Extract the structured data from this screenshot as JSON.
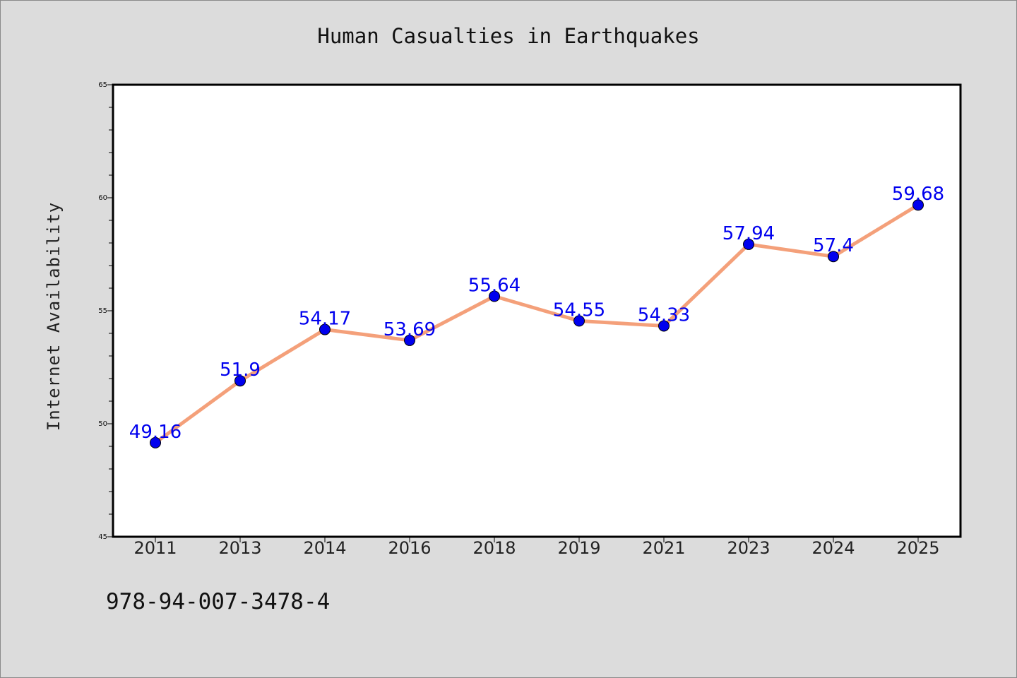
{
  "chart_data": {
    "type": "line",
    "title": "Human Casualties in Earthquakes",
    "xlabel": "",
    "ylabel": "Internet Availability",
    "categories": [
      "2011",
      "2013",
      "2014",
      "2016",
      "2018",
      "2019",
      "2021",
      "2023",
      "2024",
      "2025"
    ],
    "series": [
      {
        "values": [
          49.16,
          51.9,
          54.17,
          53.69,
          55.64,
          54.55,
          54.33,
          57.94,
          57.4,
          59.68
        ],
        "labels": [
          "49.16",
          "51.9",
          "54.17",
          "53.69",
          "55.64",
          "54.55",
          "54.33",
          "57.94",
          "57.4",
          "59.68"
        ]
      }
    ],
    "ylim": [
      45,
      65
    ],
    "yticks": [
      "45",
      "50",
      "55",
      "60",
      "65"
    ],
    "grid": false,
    "line_color": "#f4a07a",
    "marker_color": "#0000ee",
    "label_color": "#0000ee"
  },
  "footer": {
    "text": "978-94-007-3478-4"
  },
  "colors": {
    "background": "#dcdcdc",
    "plot_background": "#ffffff"
  }
}
